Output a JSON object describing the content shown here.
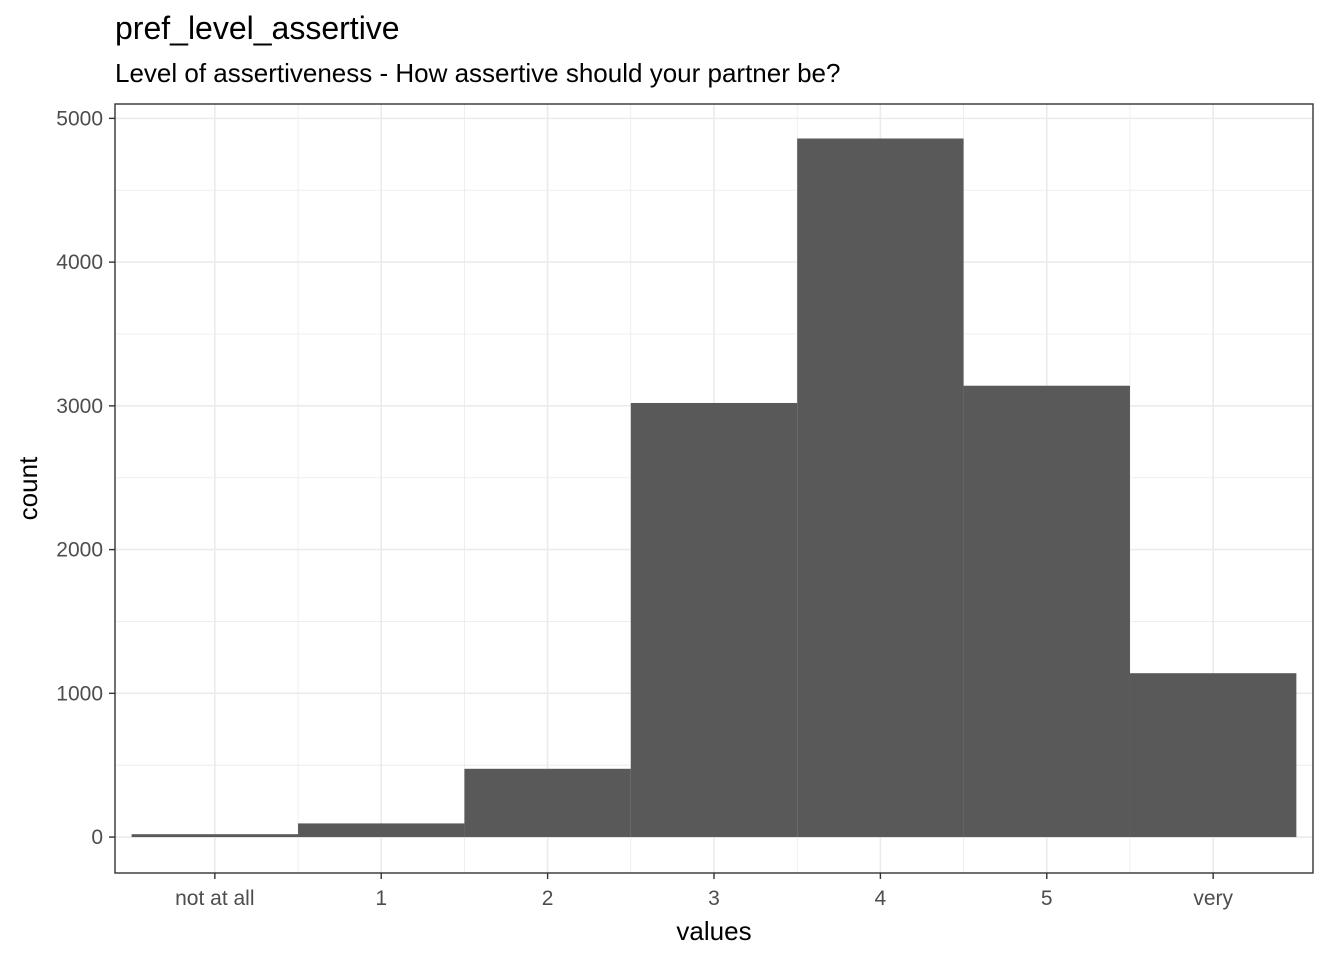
{
  "chart_data": {
    "type": "bar",
    "title": "pref_level_assertive",
    "subtitle": "Level of assertiveness - How assertive should your partner be?",
    "xlabel": "values",
    "ylabel": "count",
    "categories": [
      "not at all",
      "1",
      "2",
      "3",
      "4",
      "5",
      "very"
    ],
    "values": [
      20,
      95,
      475,
      3020,
      4860,
      3140,
      1140
    ],
    "ylim": [
      -250,
      5100
    ],
    "xlim": [
      -0.6,
      6.6
    ],
    "yticks": [
      0,
      1000,
      2000,
      3000,
      4000,
      5000
    ],
    "grid": true,
    "bar_color": "#595959",
    "grid_color": "#ebebeb",
    "panel_border_color": "#333333"
  }
}
